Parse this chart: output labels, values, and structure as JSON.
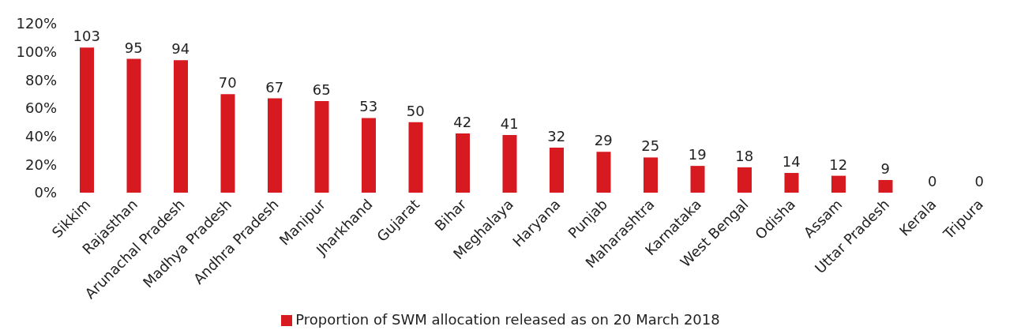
{
  "chart_data": {
    "type": "bar",
    "categories": [
      "Sikkim",
      "Rajasthan",
      "Arunachal Pradesh",
      "Madhya Pradesh",
      "Andhra Pradesh",
      "Manipur",
      "Jharkhand",
      "Gujarat",
      "Bihar",
      "Meghalaya",
      "Haryana",
      "Punjab",
      "Maharashtra",
      "Karnataka",
      "West Bengal",
      "Odisha",
      "Assam",
      "Uttar Pradesh",
      "Kerala",
      "Tripura"
    ],
    "series": [
      {
        "name": "Proportion of SWM allocation released as on 20 March 2018",
        "color": "#d71920",
        "values": [
          103,
          95,
          94,
          70,
          67,
          65,
          53,
          50,
          42,
          41,
          32,
          29,
          25,
          19,
          18,
          14,
          12,
          9,
          0,
          0
        ]
      }
    ],
    "ylim": [
      0,
      120
    ],
    "yticks": [
      {
        "value": 0,
        "label": "0%"
      },
      {
        "value": 20,
        "label": "20%"
      },
      {
        "value": 40,
        "label": "40%"
      },
      {
        "value": 60,
        "label": "60%"
      },
      {
        "value": 80,
        "label": "80%"
      },
      {
        "value": 100,
        "label": "100%"
      },
      {
        "value": 120,
        "label": "120%"
      }
    ],
    "data_labels": true,
    "grid": false,
    "legend": "bottom"
  }
}
